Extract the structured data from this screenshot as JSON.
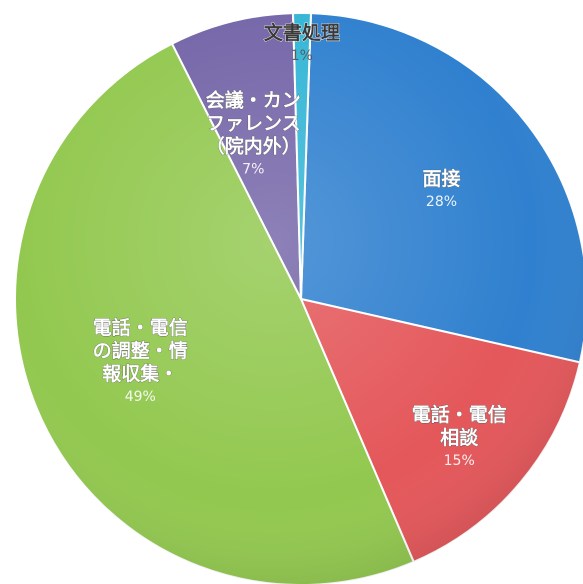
{
  "chart_data": {
    "type": "pie",
    "title": "",
    "slices": [
      {
        "label": [
          "面接"
        ],
        "value": 28,
        "pct_label": "28%",
        "color": "#2f80cf"
      },
      {
        "label": [
          "電話・電信",
          "相談"
        ],
        "value": 15,
        "pct_label": "15%",
        "color": "#e4575a"
      },
      {
        "label": [
          "電話・電信",
          "の調整・情",
          "報収集・"
        ],
        "value": 49,
        "pct_label": "49%",
        "color": "#92c84f"
      },
      {
        "label": [
          "会議・カン",
          "ファレンス",
          "（院内外）"
        ],
        "value": 7,
        "pct_label": "7%",
        "color": "#7465a8"
      },
      {
        "label": [
          "文書処理"
        ],
        "value": 1,
        "pct_label": "1%",
        "color": "#33b5d6"
      }
    ],
    "start_angle_deg": -88,
    "direction": "clockwise",
    "legend": "none"
  }
}
